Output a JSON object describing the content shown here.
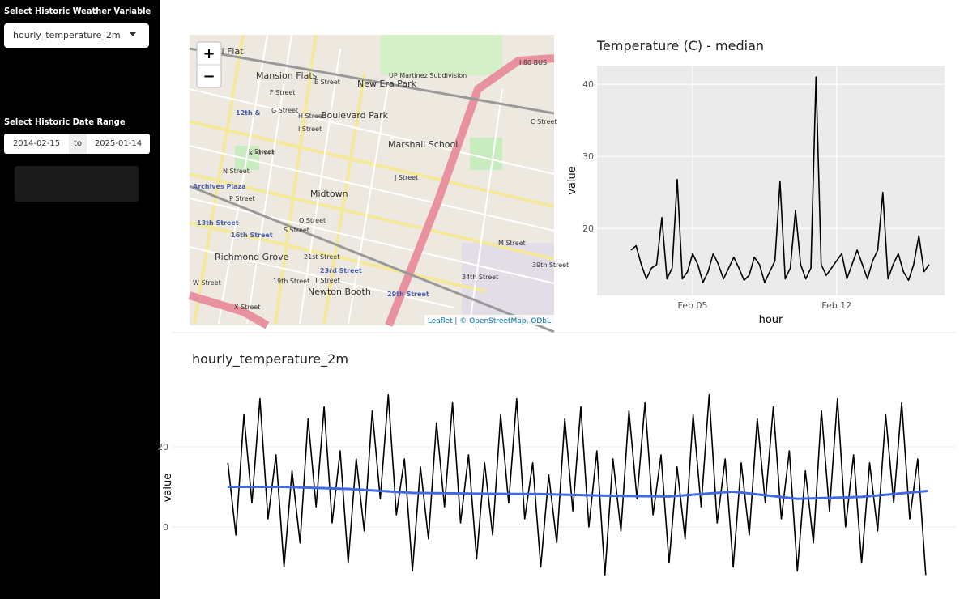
{
  "sidebar": {
    "variable_label": "Select Historic Weather Variable",
    "variable_value": "hourly_temperature_2m",
    "date_label": "Select Historic Date Range",
    "date_start": "2014-02-15",
    "date_sep": "to",
    "date_end": "2025-01-14"
  },
  "map": {
    "zoom_in": "+",
    "zoom_out": "−",
    "attribution": "Leaflet | © OpenStreetMap, ODbL",
    "labels": [
      "Alkali Flat",
      "Mansion Flats",
      "New Era Park",
      "UP Martinez Subdivision",
      "I 80 BUS",
      "Boulevard Park",
      "Marshall School",
      "12th &",
      "E Street",
      "F Street",
      "G Street",
      "H Street",
      "I Street",
      "J Street",
      "K Street",
      "L Street",
      "N Street",
      "P Street",
      "Q Street",
      "S Street",
      "T Street",
      "W Street",
      "X Street",
      "Midtown",
      "Archives Plaza",
      "13th Street",
      "16th Street",
      "23rd Street",
      "29th Street",
      "Richmond Grove",
      "Newton Booth",
      "M Street",
      "C Street",
      "39th Street",
      "34th Street",
      "19th Street",
      "21st Street"
    ]
  },
  "chart_data": [
    {
      "type": "line",
      "title": "Temperature (C) - median",
      "x_label": "hour",
      "y_label": "value",
      "x": [
        2,
        2.25,
        2.5,
        2.75,
        3,
        3.25,
        3.5,
        3.75,
        4,
        4.25,
        4.5,
        4.75,
        5,
        5.25,
        5.5,
        5.75,
        6,
        6.25,
        6.5,
        6.75,
        7,
        7.25,
        7.5,
        7.75,
        8,
        8.25,
        8.5,
        8.75,
        9,
        9.25,
        9.5,
        9.75,
        10,
        10.25,
        10.5,
        10.75,
        11,
        11.25,
        11.5,
        11.75,
        12,
        12.25,
        12.5,
        12.75,
        13,
        13.25,
        13.5,
        13.75,
        14,
        14.25,
        14.5,
        14.75,
        15,
        15.25,
        15.5,
        15.75,
        16,
        16.25,
        16.5
      ],
      "series": [
        {
          "color": "#000000",
          "values": [
            17,
            17.6,
            15,
            13,
            14.5,
            15,
            21.5,
            13,
            14.5,
            26.8,
            13,
            14,
            16.5,
            15,
            12.5,
            14,
            16.5,
            15,
            13,
            14.5,
            16,
            14.5,
            12.8,
            13.5,
            16,
            15,
            12.5,
            14,
            15.5,
            26.5,
            13,
            14.5,
            22.5,
            15,
            13,
            14.5,
            41,
            15,
            13.5,
            14.5,
            15.5,
            16.5,
            13,
            15,
            17,
            15,
            13,
            15.5,
            17,
            25,
            13,
            15,
            16.5,
            14,
            12.8,
            15,
            19,
            14,
            15
          ]
        }
      ],
      "xlim": [
        0.35,
        17.25
      ],
      "xticks": [
        {
          "value": 5,
          "label": "Feb 05"
        },
        {
          "value": 12,
          "label": "Feb 12"
        }
      ],
      "ylim": [
        10.7,
        42.6
      ],
      "yticks": [
        20,
        30,
        40
      ],
      "grid": true
    },
    {
      "type": "line",
      "title": "hourly_temperature_2m",
      "y_label": "value",
      "xlim": [
        2013.25,
        2025.47
      ],
      "ylim": [
        -18,
        37.6
      ],
      "yticks": [
        0,
        20
      ],
      "grid": true,
      "series": [
        {
          "color": "#000000",
          "x": [
            2014.125,
            2014.25,
            2014.375,
            2014.5,
            2014.625,
            2014.75,
            2014.875,
            2015,
            2015.125,
            2015.25,
            2015.375,
            2015.5,
            2015.625,
            2015.75,
            2015.875,
            2016,
            2016.125,
            2016.25,
            2016.375,
            2016.5,
            2016.625,
            2016.75,
            2016.875,
            2017,
            2017.125,
            2017.25,
            2017.375,
            2017.5,
            2017.625,
            2017.75,
            2017.875,
            2018,
            2018.125,
            2018.25,
            2018.375,
            2018.5,
            2018.625,
            2018.75,
            2018.875,
            2019,
            2019.125,
            2019.25,
            2019.375,
            2019.5,
            2019.625,
            2019.75,
            2019.875,
            2020,
            2020.125,
            2020.25,
            2020.375,
            2020.5,
            2020.625,
            2020.75,
            2020.875,
            2021,
            2021.125,
            2021.25,
            2021.375,
            2021.5,
            2021.625,
            2021.75,
            2021.875,
            2022,
            2022.125,
            2022.25,
            2022.375,
            2022.5,
            2022.625,
            2022.75,
            2022.875,
            2023,
            2023.125,
            2023.25,
            2023.375,
            2023.5,
            2023.625,
            2023.75,
            2023.875,
            2024,
            2024.125,
            2024.25,
            2024.375,
            2024.5,
            2024.625,
            2024.75,
            2024.875,
            2025
          ],
          "values": [
            16,
            -2,
            28,
            6,
            32,
            2,
            18,
            -10,
            14,
            -4,
            27,
            5,
            30,
            1,
            19,
            -9,
            17,
            -1,
            29,
            7,
            33,
            3,
            17,
            -11,
            15,
            -3,
            26,
            5,
            31,
            1,
            18,
            -8,
            16,
            -2,
            28,
            6,
            32,
            2,
            16,
            -10,
            13,
            -4,
            27,
            4,
            30,
            0,
            19,
            -12,
            17,
            -1,
            29,
            7,
            31,
            3,
            18,
            -9,
            15,
            -3,
            28,
            5,
            33,
            1,
            17,
            -10,
            16,
            -2,
            27,
            6,
            30,
            2,
            19,
            -11,
            14,
            -4,
            29,
            4,
            32,
            0,
            18,
            -9,
            16,
            -1,
            28,
            6,
            31,
            2,
            17,
            -12
          ]
        },
        {
          "color": "#4169e1",
          "x": [
            2014.12,
            2015,
            2016,
            2017,
            2018,
            2019,
            2020,
            2021,
            2022,
            2023,
            2024,
            2025.04
          ],
          "values": [
            10,
            10,
            9.5,
            8.5,
            8.3,
            8.2,
            7.8,
            7.6,
            8.8,
            7,
            7.5,
            9
          ]
        }
      ]
    }
  ]
}
